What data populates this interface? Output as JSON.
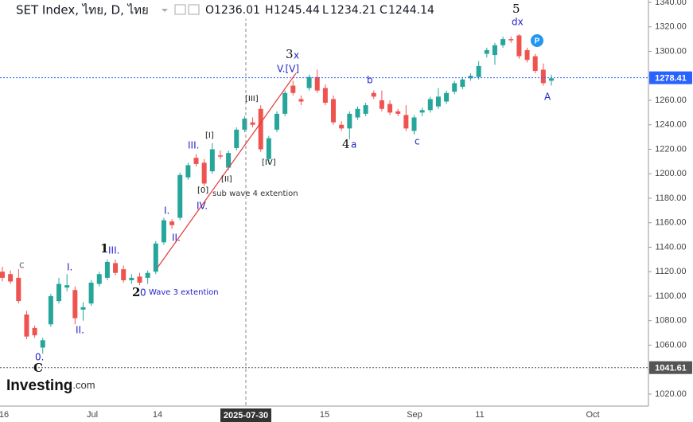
{
  "chart_data": {
    "type": "candlestick",
    "title": "SET Index, ไทย, D, ไทย",
    "legend": {
      "open": {
        "label": "O",
        "value": 1236.01
      },
      "high": {
        "label": "H",
        "value": 1245.44
      },
      "low": {
        "label": "L",
        "value": 1234.21
      },
      "close": {
        "label": "C",
        "value": 1244.14
      }
    },
    "up_color": "#26a69a",
    "down_color": "#ef5350",
    "ylim": [
      1010.2,
      1341.95
    ],
    "yticks": [
      {
        "value": 1020,
        "label": "1020.00"
      },
      {
        "value": 1040,
        "label": "1040.00"
      },
      {
        "value": 1060,
        "label": "1060.00"
      },
      {
        "value": 1080,
        "label": "1080.00"
      },
      {
        "value": 1100,
        "label": "1100.00"
      },
      {
        "value": 1120,
        "label": "1120.00"
      },
      {
        "value": 1140,
        "label": "1140.00"
      },
      {
        "value": 1160,
        "label": "1160.00"
      },
      {
        "value": 1180,
        "label": "1180.00"
      },
      {
        "value": 1200,
        "label": "1200.00"
      },
      {
        "value": 1220,
        "label": "1220.00"
      },
      {
        "value": 1240,
        "label": "1240.00"
      },
      {
        "value": 1260,
        "label": "1260.00"
      },
      {
        "value": 1280,
        "label": "1280.00"
      },
      {
        "value": 1300,
        "label": "1300.00"
      },
      {
        "value": 1320,
        "label": "1320.00"
      },
      {
        "value": 1340,
        "label": "1340.00"
      }
    ],
    "xticks": [
      "16",
      "Jul",
      "14",
      "15",
      "Sep",
      "11",
      "Oct"
    ],
    "crosshair_label": "2025-07-30",
    "price_lines": [
      {
        "value": 1278.41,
        "color": "#2962ff"
      },
      {
        "value": 1041.61,
        "color": "#555555"
      }
    ],
    "candles": [
      {
        "open": 1120,
        "high": 1124,
        "low": 1112,
        "close": 1115
      },
      {
        "open": 1118,
        "high": 1121,
        "low": 1110,
        "close": 1112
      },
      {
        "open": 1115,
        "high": 1122,
        "low": 1094,
        "close": 1096
      },
      {
        "open": 1085,
        "high": 1088,
        "low": 1065,
        "close": 1067
      },
      {
        "open": 1074,
        "high": 1076,
        "low": 1066,
        "close": 1068
      },
      {
        "open": 1058,
        "high": 1066,
        "low": 1053,
        "close": 1064
      },
      {
        "open": 1077,
        "high": 1102,
        "low": 1075,
        "close": 1100
      },
      {
        "open": 1096,
        "high": 1115,
        "low": 1094,
        "close": 1110
      },
      {
        "open": 1107,
        "high": 1118,
        "low": 1104,
        "close": 1109
      },
      {
        "open": 1105,
        "high": 1108,
        "low": 1077,
        "close": 1082
      },
      {
        "open": 1089,
        "high": 1095,
        "low": 1080,
        "close": 1091
      },
      {
        "open": 1094,
        "high": 1113,
        "low": 1092,
        "close": 1111
      },
      {
        "open": 1110,
        "high": 1120,
        "low": 1108,
        "close": 1118
      },
      {
        "open": 1115,
        "high": 1130,
        "low": 1113,
        "close": 1128
      },
      {
        "open": 1127,
        "high": 1130,
        "low": 1117,
        "close": 1119
      },
      {
        "open": 1122,
        "high": 1125,
        "low": 1111,
        "close": 1113
      },
      {
        "open": 1113,
        "high": 1118,
        "low": 1110,
        "close": 1115
      },
      {
        "open": 1116,
        "high": 1119,
        "low": 1109,
        "close": 1111
      },
      {
        "open": 1115,
        "high": 1121,
        "low": 1110,
        "close": 1119
      },
      {
        "open": 1120,
        "high": 1145,
        "low": 1118,
        "close": 1143
      },
      {
        "open": 1144,
        "high": 1164,
        "low": 1142,
        "close": 1162
      },
      {
        "open": 1161,
        "high": 1163,
        "low": 1155,
        "close": 1158
      },
      {
        "open": 1164,
        "high": 1201,
        "low": 1162,
        "close": 1199
      },
      {
        "open": 1197,
        "high": 1209,
        "low": 1195,
        "close": 1207
      },
      {
        "open": 1213,
        "high": 1216,
        "low": 1206,
        "close": 1208
      },
      {
        "open": 1209,
        "high": 1212,
        "low": 1190,
        "close": 1192
      },
      {
        "open": 1202,
        "high": 1225,
        "low": 1200,
        "close": 1220
      },
      {
        "open": 1215,
        "high": 1219,
        "low": 1212,
        "close": 1214
      },
      {
        "open": 1205,
        "high": 1219,
        "low": 1203,
        "close": 1217
      },
      {
        "open": 1221,
        "high": 1238,
        "low": 1219,
        "close": 1236
      },
      {
        "open": 1236,
        "high": 1247,
        "low": 1234,
        "close": 1245
      },
      {
        "open": 1242,
        "high": 1246,
        "low": 1238,
        "close": 1240
      },
      {
        "open": 1253,
        "high": 1256,
        "low": 1218,
        "close": 1220
      },
      {
        "open": 1212,
        "high": 1231,
        "low": 1208,
        "close": 1229
      },
      {
        "open": 1236,
        "high": 1251,
        "low": 1234,
        "close": 1249
      },
      {
        "open": 1249,
        "high": 1268,
        "low": 1247,
        "close": 1266
      },
      {
        "open": 1272,
        "high": 1276,
        "low": 1264,
        "close": 1266
      },
      {
        "open": 1261,
        "high": 1264,
        "low": 1256,
        "close": 1259
      },
      {
        "open": 1270,
        "high": 1281,
        "low": 1268,
        "close": 1279
      },
      {
        "open": 1279,
        "high": 1285,
        "low": 1266,
        "close": 1268
      },
      {
        "open": 1270,
        "high": 1273,
        "low": 1256,
        "close": 1258
      },
      {
        "open": 1261,
        "high": 1264,
        "low": 1240,
        "close": 1242
      },
      {
        "open": 1240,
        "high": 1243,
        "low": 1235,
        "close": 1237
      },
      {
        "open": 1237,
        "high": 1251,
        "low": 1228,
        "close": 1249
      },
      {
        "open": 1246,
        "high": 1255,
        "low": 1244,
        "close": 1253
      },
      {
        "open": 1249,
        "high": 1258,
        "low": 1247,
        "close": 1256
      },
      {
        "open": 1266,
        "high": 1268,
        "low": 1261,
        "close": 1263
      },
      {
        "open": 1260,
        "high": 1268,
        "low": 1251,
        "close": 1253
      },
      {
        "open": 1257,
        "high": 1260,
        "low": 1248,
        "close": 1250
      },
      {
        "open": 1251,
        "high": 1253,
        "low": 1247,
        "close": 1249
      },
      {
        "open": 1248,
        "high": 1256,
        "low": 1235,
        "close": 1237
      },
      {
        "open": 1235,
        "high": 1248,
        "low": 1232,
        "close": 1246
      },
      {
        "open": 1250,
        "high": 1254,
        "low": 1247,
        "close": 1252
      },
      {
        "open": 1252,
        "high": 1263,
        "low": 1250,
        "close": 1261
      },
      {
        "open": 1255,
        "high": 1270,
        "low": 1253,
        "close": 1263
      },
      {
        "open": 1259,
        "high": 1268,
        "low": 1257,
        "close": 1266
      },
      {
        "open": 1267,
        "high": 1276,
        "low": 1265,
        "close": 1274
      },
      {
        "open": 1271,
        "high": 1279,
        "low": 1269,
        "close": 1277
      },
      {
        "open": 1278,
        "high": 1282,
        "low": 1276,
        "close": 1280
      },
      {
        "open": 1279,
        "high": 1292,
        "low": 1277,
        "close": 1288
      },
      {
        "open": 1298,
        "high": 1303,
        "low": 1295,
        "close": 1301
      },
      {
        "open": 1297,
        "high": 1307,
        "low": 1289,
        "close": 1305
      },
      {
        "open": 1305,
        "high": 1312,
        "low": 1303,
        "close": 1310
      },
      {
        "open": 1310,
        "high": 1312,
        "low": 1307,
        "close": 1309
      },
      {
        "open": 1313,
        "high": 1314,
        "low": 1294,
        "close": 1296
      },
      {
        "open": 1301,
        "high": 1303,
        "low": 1291,
        "close": 1293
      },
      {
        "open": 1296,
        "high": 1298,
        "low": 1282,
        "close": 1284
      },
      {
        "open": 1285,
        "high": 1290,
        "low": 1272,
        "close": 1274
      },
      {
        "open": 1276,
        "high": 1281,
        "low": 1272,
        "close": 1278
      }
    ],
    "annotations": [
      "c",
      "I.",
      "II.",
      "0.",
      "C",
      "1",
      "III.",
      "2",
      "0",
      "Wave 3 extention",
      "I.",
      "II.",
      "III.",
      "IV.",
      "[I]",
      "[0]",
      "sub wave 4 extention",
      "[II]",
      "[III]",
      "[IV]",
      "3",
      "x",
      "V.[V]",
      "4",
      "a",
      "b",
      "c",
      "5",
      "dx",
      "A"
    ],
    "marker": "P",
    "logo": {
      "name": "Investing",
      "suffix": ".com"
    }
  }
}
